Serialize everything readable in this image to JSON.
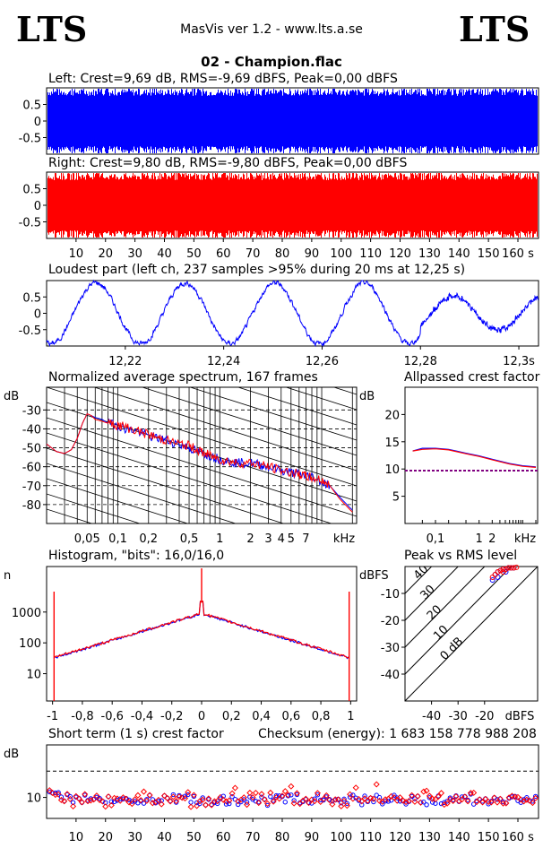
{
  "header": {
    "logo_left": "LTS",
    "logo_right": "LTS",
    "subtitle": "MasVis ver 1.2 - www.lts.a.se",
    "filename": "02 - Champion.flac"
  },
  "colors": {
    "left": "#0000ff",
    "right": "#ff0000",
    "grid": "#000000",
    "line": "#800080"
  },
  "chart_data": [
    {
      "type": "area",
      "id": "left",
      "title": "Left: Crest=9,69 dB, RMS=-9,69 dBFS, Peak=0,00 dBFS",
      "ytick_labels": [
        "0.5",
        "0",
        "-0.5"
      ],
      "yticks": [
        0.5,
        0,
        -0.5
      ],
      "ylim": [
        -1,
        1
      ],
      "xlim": [
        0,
        167
      ],
      "envelope": {
        "peak": 1.0,
        "typical": 0.8
      }
    },
    {
      "type": "area",
      "id": "right",
      "title": "Right: Crest=9,80 dB, RMS=-9,80 dBFS, Peak=0,00 dBFS",
      "ytick_labels": [
        "0.5",
        "0",
        "-0.5"
      ],
      "yticks": [
        0.5,
        0,
        -0.5
      ],
      "ylim": [
        -1,
        1
      ],
      "xlim": [
        0,
        167
      ],
      "xticks": [
        10,
        20,
        30,
        40,
        50,
        60,
        70,
        80,
        90,
        100,
        110,
        120,
        130,
        140,
        150,
        160
      ],
      "xtick_labels": [
        "10",
        "20",
        "30",
        "40",
        "50",
        "60",
        "70",
        "80",
        "90",
        "100",
        "110",
        "120",
        "130",
        "140",
        "150",
        "160 s"
      ]
    },
    {
      "type": "line",
      "id": "loudest",
      "title": "Loudest part (left  ch, 237 samples >95% during 20 ms at 12,25 s)",
      "ytick_labels": [
        "0.5",
        "0",
        "-0.5"
      ],
      "yticks": [
        0.5,
        0,
        -0.5
      ],
      "ylim": [
        -1,
        1
      ],
      "xlim": [
        12.204,
        12.304
      ],
      "xticks": [
        12.22,
        12.24,
        12.26,
        12.28,
        12.3
      ],
      "xtick_labels": [
        "12,22",
        "12,24",
        "12,26",
        "12,28",
        "12,3s"
      ],
      "frequency_hz": 55,
      "amplitude": 0.93
    },
    {
      "type": "line",
      "id": "spectrum",
      "title": "Normalized average spectrum, 167 frames",
      "ylabel": "dB",
      "yticks": [
        -30,
        -40,
        -50,
        -60,
        -70,
        -80
      ],
      "ytick_labels": [
        "-30",
        "-40",
        "-50",
        "-60",
        "-70",
        "-80"
      ],
      "ylim": [
        -90,
        -18
      ],
      "xlim_khz": [
        0.02,
        22
      ],
      "xticks_khz": [
        0.05,
        0.1,
        0.2,
        0.5,
        1,
        2,
        3,
        4,
        5,
        7
      ],
      "xtick_labels": [
        "0,05",
        "0,1",
        "0,2",
        "0,5",
        "1",
        "2",
        "3",
        "4",
        "5",
        "7",
        "kHz"
      ],
      "x_khz": [
        0.02,
        0.025,
        0.03,
        0.035,
        0.04,
        0.045,
        0.05,
        0.055,
        0.06,
        0.07,
        0.08,
        0.1,
        0.12,
        0.15,
        0.2,
        0.25,
        0.3,
        0.4,
        0.5,
        0.6,
        0.7,
        0.8,
        1,
        1.2,
        1.5,
        2,
        2.5,
        3,
        4,
        5,
        6,
        7,
        8,
        10,
        12,
        15,
        20
      ],
      "left_db": [
        -48,
        -52,
        -53,
        -51,
        -45,
        -37,
        -32,
        -33,
        -34,
        -35,
        -37,
        -38,
        -40,
        -41,
        -44,
        -45,
        -46,
        -48,
        -50,
        -52,
        -53,
        -54,
        -56,
        -57,
        -58,
        -58,
        -59,
        -60,
        -62,
        -63,
        -64,
        -65,
        -65,
        -68,
        -70,
        -76,
        -83
      ],
      "right_db": [
        -48,
        -52,
        -53,
        -51,
        -45,
        -37,
        -32,
        -33,
        -35,
        -36,
        -37,
        -38,
        -39,
        -41,
        -43,
        -45,
        -46,
        -48,
        -49,
        -51,
        -53,
        -54,
        -56,
        -57,
        -58,
        -58,
        -59,
        -60,
        -62,
        -63,
        -64,
        -65,
        -66,
        -67,
        -70,
        -77,
        -84
      ]
    },
    {
      "type": "line",
      "id": "allpassed",
      "title": "Allpassed crest factor",
      "ylabel": "dB",
      "yticks": [
        5,
        10,
        15,
        20
      ],
      "ytick_labels": [
        "5",
        "10",
        "15",
        "20"
      ],
      "ylim": [
        0,
        25
      ],
      "xticks_khz": [
        0.1,
        1,
        2
      ],
      "xtick_labels": [
        "0,1",
        "1",
        "2",
        "kHz"
      ],
      "x_khz": [
        0.03,
        0.05,
        0.1,
        0.2,
        0.5,
        1,
        2,
        5,
        10,
        20
      ],
      "left_db": [
        13.3,
        13.8,
        13.8,
        13.6,
        12.9,
        12.4,
        11.8,
        11.0,
        10.6,
        10.4
      ],
      "right_db": [
        13.3,
        13.6,
        13.7,
        13.5,
        12.8,
        12.3,
        11.7,
        10.9,
        10.5,
        10.3
      ],
      "reference_db": 9.7
    },
    {
      "type": "line",
      "id": "histogram",
      "title": "Histogram, \"bits\": 16,0/16,0",
      "ylabel": "n",
      "yticks": [
        10,
        100,
        1000
      ],
      "ytick_labels": [
        "10",
        "100",
        "1000"
      ],
      "xticks": [
        -1,
        -0.8,
        -0.6,
        -0.4,
        -0.2,
        0,
        0.2,
        0.4,
        0.6,
        0.8,
        1
      ],
      "xtick_labels": [
        "-1",
        "-0,8",
        "-0,6",
        "-0,4",
        "-0,2",
        "0",
        "0,2",
        "0,4",
        "0,6",
        "0,8",
        "1"
      ],
      "xlim": [
        -1.04,
        1.04
      ]
    },
    {
      "type": "scatter",
      "id": "peakrms",
      "title": "Peak vs RMS level",
      "ylabel": "dBFS",
      "xlabel": "dBFS",
      "yticks": [
        -10,
        -20,
        -30,
        -40
      ],
      "ytick_labels": [
        "-10",
        "-20",
        "-30",
        "-40"
      ],
      "xticks": [
        -40,
        -30,
        -20
      ],
      "xtick_labels": [
        "-40",
        "-30",
        "-20"
      ],
      "xlim": [
        -50,
        0
      ],
      "ylim": [
        -50,
        0
      ],
      "diag_labels": [
        "40",
        "30",
        "20",
        "10",
        "0 dB"
      ],
      "left_points": [
        [
          -17,
          -5
        ],
        [
          -16,
          -3
        ],
        [
          -15,
          -2
        ],
        [
          -14,
          -1.5
        ],
        [
          -13,
          -1
        ],
        [
          -12,
          -1
        ],
        [
          -11,
          -0.5
        ],
        [
          -10,
          -0.5
        ],
        [
          -9,
          -0.5
        ],
        [
          -15,
          -4
        ],
        [
          -12,
          -2
        ]
      ],
      "right_points": [
        [
          -17,
          -4
        ],
        [
          -16,
          -3
        ],
        [
          -15,
          -2
        ],
        [
          -14,
          -1.5
        ],
        [
          -13,
          -1
        ],
        [
          -12,
          -1
        ],
        [
          -11,
          -0.5
        ],
        [
          -10,
          -0.5
        ],
        [
          -9,
          -0.5
        ],
        [
          -8,
          -0.3
        ],
        [
          -13,
          -2
        ]
      ]
    },
    {
      "type": "scatter",
      "id": "shortcrest",
      "title": "Short term (1 s) crest factor",
      "checksum_label": "Checksum (energy):  1 683 158 778 988 208",
      "ylabel": "dB",
      "yticks": [
        10
      ],
      "ytick_labels": [
        "10"
      ],
      "ylim": [
        6,
        20
      ],
      "xlim": [
        0,
        167
      ],
      "reference_db": 15,
      "xticks": [
        10,
        20,
        30,
        40,
        50,
        60,
        70,
        80,
        90,
        100,
        110,
        120,
        130,
        140,
        150,
        160
      ],
      "xtick_labels": [
        "10",
        "20",
        "30",
        "40",
        "50",
        "60",
        "70",
        "80",
        "90",
        "100",
        "110",
        "120",
        "130",
        "140",
        "150",
        "160 s"
      ]
    }
  ]
}
